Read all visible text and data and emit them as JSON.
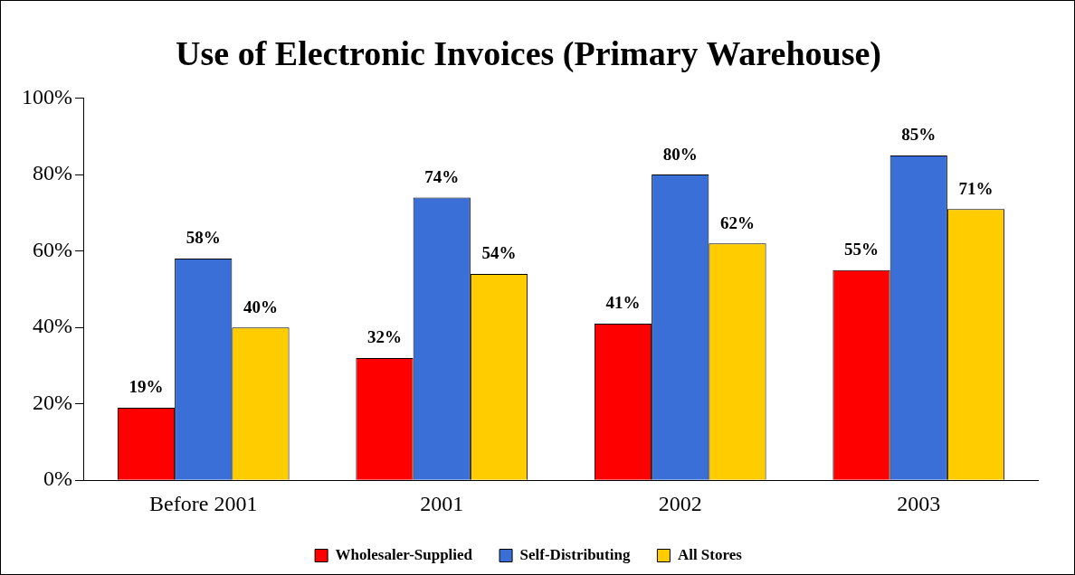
{
  "chart_data": {
    "type": "bar",
    "title": "Use of Electronic Invoices (Primary Warehouse)",
    "categories": [
      "Before 2001",
      "2001",
      "2002",
      "2003"
    ],
    "series": [
      {
        "name": "Wholesaler-Supplied",
        "color": "#ff0000",
        "values": [
          19,
          32,
          41,
          55
        ],
        "value_labels": [
          "19%",
          "32%",
          "41%",
          "55%"
        ]
      },
      {
        "name": "Self-Distributing",
        "color": "#3a6fd8",
        "values": [
          58,
          74,
          80,
          85
        ],
        "value_labels": [
          "58%",
          "74%",
          "80%",
          "85%"
        ]
      },
      {
        "name": "All Stores",
        "color": "#ffcc00",
        "values": [
          40,
          54,
          62,
          71
        ],
        "value_labels": [
          "40%",
          "54%",
          "62%",
          "71%"
        ]
      }
    ],
    "ylim": [
      0,
      100
    ],
    "yticks": [
      {
        "value": 0,
        "label": "0%"
      },
      {
        "value": 20,
        "label": "20%"
      },
      {
        "value": 40,
        "label": "40%"
      },
      {
        "value": 60,
        "label": "60%"
      },
      {
        "value": 80,
        "label": "80%"
      },
      {
        "value": 100,
        "label": "100%"
      }
    ],
    "grid": false,
    "legend": "bottom"
  }
}
